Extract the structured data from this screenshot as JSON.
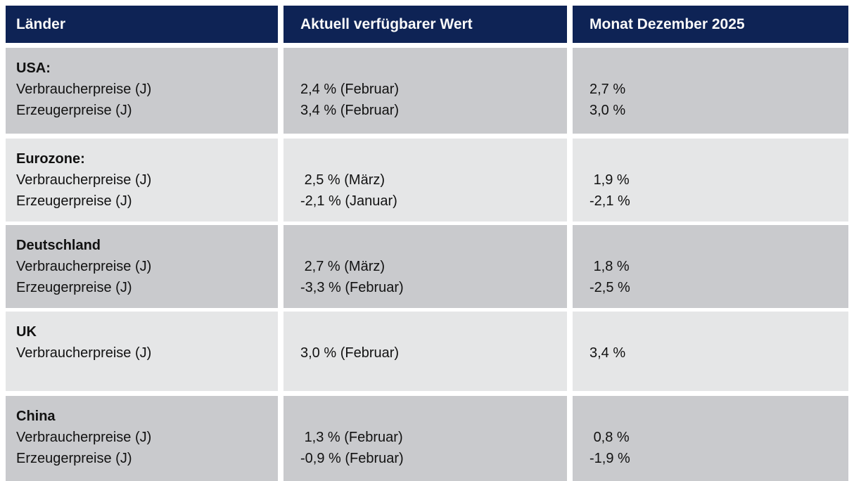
{
  "table": {
    "columns": [
      "Länder",
      "Aktuell verfügbarer Wert",
      "Monat Dezember 2025"
    ],
    "rows": [
      {
        "country": "USA:",
        "metrics": [
          "Verbraucherpreise (J)",
          "Erzeugerpreise (J)"
        ],
        "current": [
          "2,4 % (Februar)",
          "3,4 % (Februar)"
        ],
        "december": [
          "2,7 %",
          "3,0 %"
        ]
      },
      {
        "country": "Eurozone:",
        "metrics": [
          "Verbraucherpreise (J)",
          "Erzeugerpreise (J)"
        ],
        "current": [
          " 2,5 % (März)",
          "-2,1 % (Januar)"
        ],
        "december": [
          " 1,9 %",
          "-2,1 %"
        ]
      },
      {
        "country": "Deutschland",
        "metrics": [
          "Verbraucherpreise (J)",
          "Erzeugerpreise (J)"
        ],
        "current": [
          " 2,7 % (März)",
          "-3,3 % (Februar)"
        ],
        "december": [
          " 1,8 %",
          "-2,5 %"
        ]
      },
      {
        "country": "UK",
        "metrics": [
          "Verbraucherpreise (J)"
        ],
        "current": [
          "3,0 % (Februar)"
        ],
        "december": [
          "3,4 %"
        ]
      },
      {
        "country": "China",
        "metrics": [
          "Verbraucherpreise (J)",
          "Erzeugerpreise (J)"
        ],
        "current": [
          " 1,3 % (Februar)",
          "-0,9 % (Februar)"
        ],
        "december": [
          " 0,8 %",
          "-1,9 %"
        ]
      }
    ]
  },
  "colors": {
    "header_bg": "#0E2355",
    "header_text": "#FAFAFA",
    "row_dark": "#C9CACD",
    "row_light": "#E5E6E7",
    "text": "#111111",
    "gap": "#FFFFFF"
  }
}
